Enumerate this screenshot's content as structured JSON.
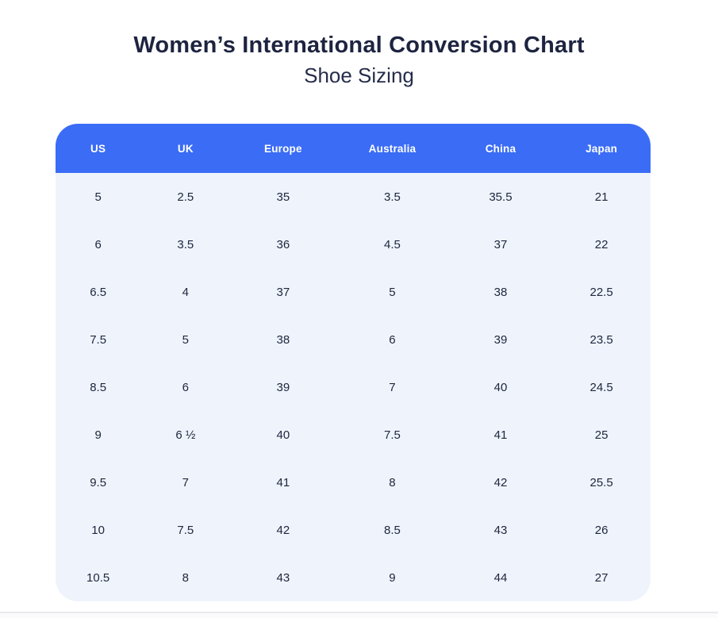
{
  "header": {
    "title": "Women’s International Conversion Chart",
    "subtitle": "Shoe Sizing"
  },
  "colors": {
    "header_bg": "#3a6cf6",
    "header_text": "#ffffff",
    "body_bg": "#eff4fc",
    "title_text": "#1d2440",
    "cell_text": "#20273f",
    "page_bg": "#ffffff",
    "bottom_divider": "#e9eaee"
  },
  "chart_data": {
    "type": "table",
    "title": "Women’s International Conversion Chart",
    "subtitle": "Shoe Sizing",
    "columns": [
      "US",
      "UK",
      "Europe",
      "Australia",
      "China",
      "Japan"
    ],
    "rows": [
      [
        "5",
        "2.5",
        "35",
        "3.5",
        "35.5",
        "21"
      ],
      [
        "6",
        "3.5",
        "36",
        "4.5",
        "37",
        "22"
      ],
      [
        "6.5",
        "4",
        "37",
        "5",
        "38",
        "22.5"
      ],
      [
        "7.5",
        "5",
        "38",
        "6",
        "39",
        "23.5"
      ],
      [
        "8.5",
        "6",
        "39",
        "7",
        "40",
        "24.5"
      ],
      [
        "9",
        "6 ½",
        "40",
        "7.5",
        "41",
        "25"
      ],
      [
        "9.5",
        "7",
        "41",
        "8",
        "42",
        "25.5"
      ],
      [
        "10",
        "7.5",
        "42",
        "8.5",
        "43",
        "26"
      ],
      [
        "10.5",
        "8",
        "43",
        "9",
        "44",
        "27"
      ]
    ]
  }
}
